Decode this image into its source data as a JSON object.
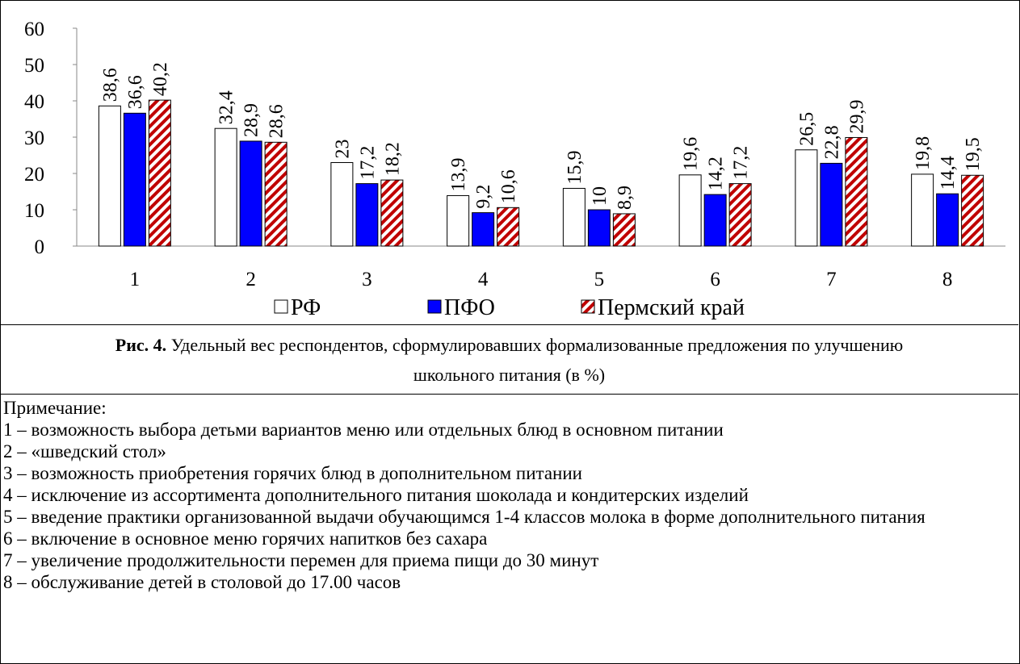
{
  "chart_data": {
    "type": "bar",
    "categories": [
      "1",
      "2",
      "3",
      "4",
      "5",
      "6",
      "7",
      "8"
    ],
    "series": [
      {
        "name": "РФ",
        "color": "#ffffff",
        "values": [
          38.6,
          32.4,
          23,
          13.9,
          15.9,
          19.6,
          26.5,
          19.8
        ],
        "value_labels": [
          "38,6",
          "32,4",
          "23",
          "13,9",
          "15,9",
          "19,6",
          "26,5",
          "19,8"
        ]
      },
      {
        "name": "ПФО",
        "color": "#0000ff",
        "values": [
          36.6,
          28.9,
          17.2,
          9.2,
          10,
          14.2,
          22.8,
          14.4
        ],
        "value_labels": [
          "36,6",
          "28,9",
          "17,2",
          "9,2",
          "10",
          "14,2",
          "22,8",
          "14,4"
        ]
      },
      {
        "name": "Пермский край",
        "color": "#c00000",
        "pattern": "hatch",
        "values": [
          40.2,
          28.6,
          18.2,
          10.6,
          8.9,
          17.2,
          29.9,
          19.5
        ],
        "value_labels": [
          "40,2",
          "28,6",
          "18,2",
          "10,6",
          "8,9",
          "17,2",
          "29,9",
          "19,5"
        ]
      }
    ],
    "ylim": [
      0,
      60
    ],
    "yticks": [
      0,
      10,
      20,
      30,
      40,
      50,
      60
    ],
    "grid": false,
    "legend": "bottom"
  },
  "caption": {
    "label": "Рис. 4.",
    "text": "Удельный вес респондентов, сформулировавших формализованные предложения по улучшению школьного питания (в %)"
  },
  "note": {
    "title": "Примечание:",
    "items": [
      "1 – возможность выбора детьми вариантов меню или отдельных блюд в основном питании",
      "2 – «шведский стол»",
      "3 – возможность приобретения горячих блюд в дополнительном питании",
      "4 – исключение из ассортимента дополнительного питания шоколада и кондитерских изделий",
      "5 – введение практики организованной выдачи обучающимся 1-4 классов молока в форме дополнительного питания",
      "6 – включение в основное меню горячих напитков без сахара",
      "7 – увеличение продолжительности перемен для приема пищи до 30 минут",
      "8 – обслуживание детей в столовой до 17.00 часов"
    ]
  }
}
